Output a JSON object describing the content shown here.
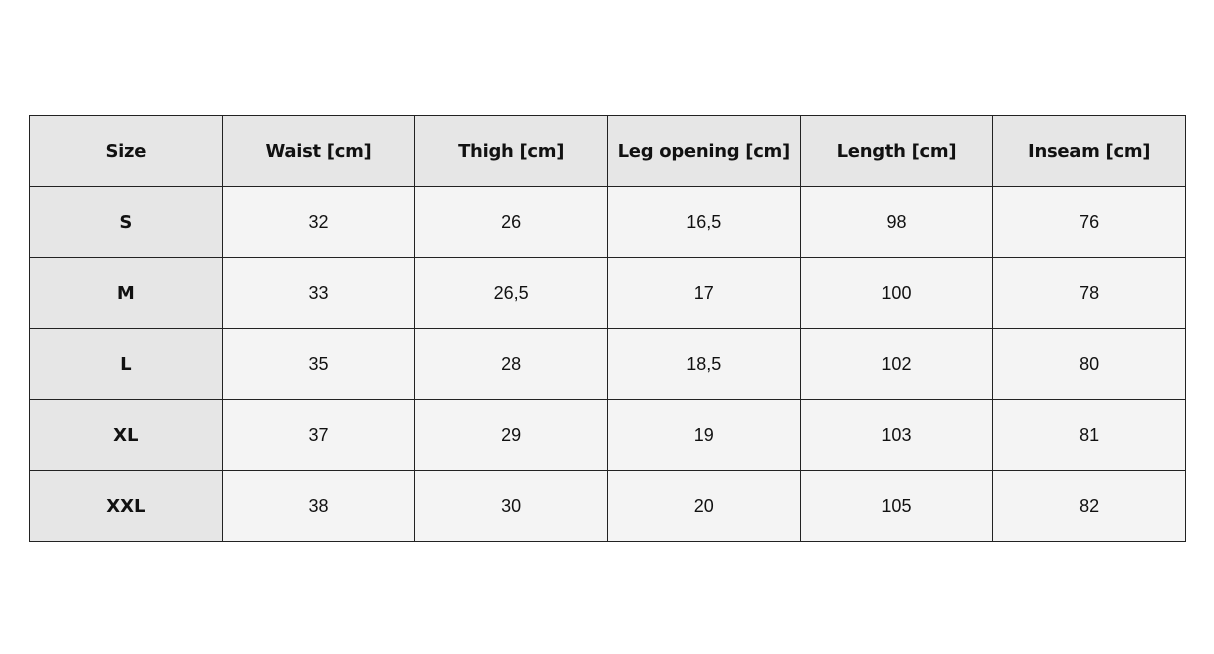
{
  "table": {
    "headers": [
      "Size",
      "Waist [cm]",
      "Thigh [cm]",
      "Leg opening [cm]",
      "Length [cm]",
      "Inseam [cm]"
    ],
    "rows": [
      [
        "S",
        "32",
        "26",
        "16,5",
        "98",
        "76"
      ],
      [
        "M",
        "33",
        "26,5",
        "17",
        "100",
        "78"
      ],
      [
        "L",
        "35",
        "28",
        "18,5",
        "102",
        "80"
      ],
      [
        "XL",
        "37",
        "29",
        "19",
        "103",
        "81"
      ],
      [
        "XXL",
        "38",
        "30",
        "20",
        "105",
        "82"
      ]
    ]
  },
  "colors": {
    "header_bg": "#e6e6e6",
    "cell_bg": "#f4f4f4",
    "border": "#222222"
  }
}
